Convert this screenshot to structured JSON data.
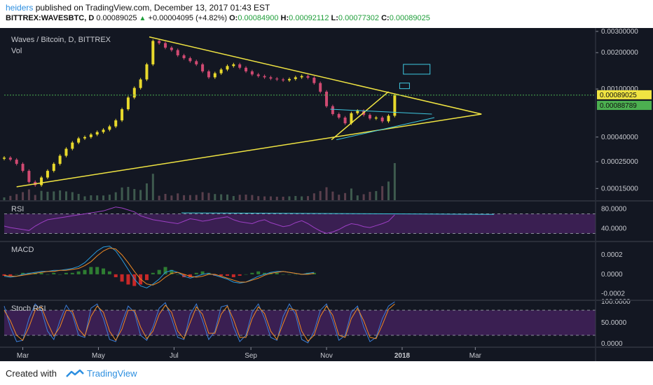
{
  "header": {
    "user": "heiders",
    "published_text": "published on TradingView.com, December 13, 2017 01:43 EST",
    "symbol": "BITTREX:WAVESBTC, D",
    "last": "0.00089025",
    "change": "+0.00004095 (+4.82%)",
    "o_label": "O:",
    "o_value": "0.00084900",
    "h_label": "H:",
    "h_value": "0.00092112",
    "l_label": "L:",
    "l_value": "0.00077302",
    "c_label": "C:",
    "c_value": "0.00089025"
  },
  "footer": {
    "created_with": "Created with",
    "brand": "TradingView"
  },
  "colors": {
    "background": "#131722",
    "up_candle": "#e8d92c",
    "down_candle": "#d04a72",
    "trendline": "#f0e442",
    "channel": "#3ec8e0",
    "rsi_line": "#9c3fc4",
    "macd_line": "#2b9adb",
    "signal_line": "#f08a24",
    "hist_pos": "#2e7d32",
    "hist_neg": "#c62828",
    "stoch_k": "#3c7dd6",
    "stoch_d": "#f08a24",
    "band_fill": "#3a1f52",
    "price_badge": "#f0e442",
    "price_badge2": "#4caf50"
  },
  "chart_data": [
    {
      "type": "candlestick",
      "title": "Waves / Bitcoin, D, BITTREX",
      "subtitle": "Vol",
      "y_scale": "log",
      "y_ticks": [
        "0.00300000",
        "0.00200000",
        "0.00100000",
        "0.00040000",
        "0.00025000",
        "0.00015000"
      ],
      "y_tick_values": [
        0.003,
        0.002,
        0.001,
        0.0004,
        0.00025,
        0.00015
      ],
      "x_ticks": [
        "Mar",
        "May",
        "Jul",
        "Sep",
        "Nov",
        "2018",
        "Mar"
      ],
      "x_tick_days": [
        0,
        61,
        122,
        184,
        245,
        306,
        365
      ],
      "ylim": [
        0.00012,
        0.0032
      ],
      "last_price": "0.00089025",
      "other_price_label": "0.00088789",
      "close_series": {
        "start_day": -15,
        "days_per_point": 5,
        "values": [
          0.00027,
          0.00026,
          0.00024,
          0.00021,
          0.00017,
          0.00016,
          0.000185,
          0.00021,
          0.00024,
          0.00028,
          0.00032,
          0.00036,
          0.00039,
          0.0004,
          0.00042,
          0.00044,
          0.00046,
          0.00049,
          0.00055,
          0.00068,
          0.00085,
          0.00102,
          0.0012,
          0.0016,
          0.0025,
          0.0024,
          0.0022,
          0.0021,
          0.0019,
          0.0018,
          0.0017,
          0.0016,
          0.0014,
          0.00125,
          0.00135,
          0.00145,
          0.00155,
          0.0016,
          0.0015,
          0.0014,
          0.00132,
          0.00128,
          0.00125,
          0.00122,
          0.0012,
          0.00118,
          0.00121,
          0.00125,
          0.00128,
          0.00124,
          0.00112,
          0.00095,
          0.00072,
          0.00062,
          0.00058,
          0.00052,
          0.00063,
          0.00066,
          0.00061,
          0.00057,
          0.00058,
          0.00054,
          0.0006,
          0.00089
        ]
      }
    },
    {
      "type": "line",
      "title": "RSI",
      "y_ticks": [
        "80.0000",
        "40.0000"
      ],
      "y_tick_values": [
        80,
        40
      ],
      "ylim": [
        15,
        95
      ],
      "band": [
        30,
        70
      ],
      "series": [
        {
          "start_day": -15,
          "days_per_point": 5,
          "values": [
            45,
            42,
            40,
            38,
            36,
            45,
            52,
            58,
            60,
            62,
            64,
            66,
            68,
            70,
            72,
            74,
            76,
            80,
            84,
            82,
            78,
            74,
            66,
            62,
            58,
            56,
            54,
            52,
            50,
            55,
            60,
            58,
            55,
            57,
            60,
            62,
            64,
            58,
            54,
            52,
            50,
            55,
            58,
            52,
            48,
            44,
            46,
            52,
            56,
            50,
            42,
            35,
            30,
            33,
            38,
            45,
            50,
            48,
            44,
            42,
            46,
            50,
            55,
            68
          ]
        }
      ]
    },
    {
      "type": "line",
      "title": "MACD",
      "y_ticks": [
        "0.0002",
        "0.0000",
        "-0.0002"
      ],
      "y_tick_values": [
        0.0002,
        0,
        -0.0002
      ],
      "ylim": [
        -0.00026,
        0.00033
      ],
      "series": [
        {
          "start_day": -15,
          "days_per_point": 5,
          "values": [
            -2e-05,
            -3e-05,
            -2e-05,
            0,
            1e-05,
            2e-05,
            3e-05,
            3e-05,
            4e-05,
            4e-05,
            5e-05,
            6e-05,
            8e-05,
            0.00012,
            0.00018,
            0.00024,
            0.00028,
            0.00029,
            0.00024,
            0.00015,
            5e-05,
            -5e-05,
            -0.00012,
            -0.00014,
            -0.0001,
            -5e-05,
            2e-05,
            4e-05,
            2e-05,
            -2e-05,
            -4e-05,
            -2e-05,
            0,
            1e-05,
            -1e-05,
            -3e-05,
            -5e-05,
            -8e-05,
            -9e-05,
            -8e-05,
            -5e-05,
            -2e-05,
            0,
            2e-05,
            3e-05,
            3e-05,
            2e-05,
            1e-05,
            0,
            1e-05,
            2e-05
          ]
        },
        {
          "start_day": -15,
          "days_per_point": 5,
          "values": [
            -1e-05,
            -2e-05,
            -2e-05,
            -1e-05,
            0,
            1e-05,
            2e-05,
            3e-05,
            3e-05,
            4e-05,
            4e-05,
            5e-05,
            6e-05,
            9e-05,
            0.00013,
            0.00019,
            0.00024,
            0.00027,
            0.00026,
            0.0002,
            0.00012,
            3e-05,
            -5e-05,
            -0.0001,
            -0.00011,
            -8e-05,
            -3e-05,
            1e-05,
            2e-05,
            0,
            -2e-05,
            -3e-05,
            -2e-05,
            0,
            0,
            -2e-05,
            -4e-05,
            -6e-05,
            -8e-05,
            -8e-05,
            -6e-05,
            -4e-05,
            -1e-05,
            1e-05,
            2e-05,
            3e-05,
            2e-05,
            1e-05,
            0,
            0,
            1e-05
          ]
        }
      ]
    },
    {
      "type": "line",
      "title": "Stoch RSI",
      "y_ticks": [
        "100.0000",
        "50.0000",
        "0.0000"
      ],
      "y_tick_values": [
        100,
        50,
        0
      ],
      "ylim": [
        -5,
        102
      ],
      "band": [
        20,
        80
      ],
      "series": [
        {
          "start_day": -15,
          "days_per_point": 5,
          "values": [
            90,
            40,
            5,
            8,
            60,
            95,
            80,
            30,
            10,
            55,
            92,
            70,
            20,
            15,
            85,
            95,
            60,
            10,
            5,
            50,
            90,
            75,
            20,
            8,
            40,
            85,
            98,
            60,
            15,
            10,
            70,
            95,
            55,
            10,
            30,
            88,
            92,
            40,
            5,
            20,
            75,
            95,
            60,
            15,
            8,
            65,
            95,
            70,
            10,
            2,
            30,
            80,
            95,
            55,
            8,
            20,
            75,
            90,
            40,
            5,
            15,
            60,
            90,
            100
          ]
        },
        {
          "start_day": -15,
          "days_per_point": 5,
          "values": [
            80,
            55,
            20,
            8,
            40,
            80,
            88,
            50,
            18,
            40,
            80,
            78,
            35,
            18,
            65,
            90,
            75,
            30,
            8,
            35,
            80,
            80,
            40,
            12,
            30,
            70,
            92,
            75,
            30,
            12,
            50,
            88,
            70,
            25,
            25,
            70,
            90,
            58,
            15,
            15,
            60,
            88,
            72,
            30,
            10,
            48,
            85,
            80,
            30,
            6,
            20,
            65,
            90,
            68,
            20,
            15,
            60,
            85,
            55,
            15,
            12,
            45,
            82,
            95
          ]
        }
      ]
    }
  ]
}
